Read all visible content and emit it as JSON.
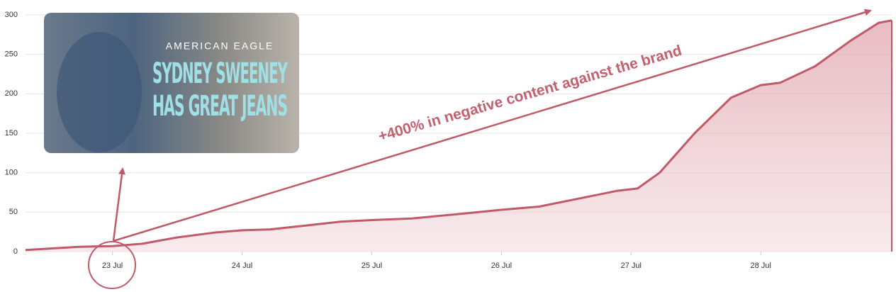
{
  "chart_data": {
    "type": "area",
    "x": [
      22.33,
      22.74,
      23.0,
      23.23,
      23.5,
      23.78,
      24.0,
      24.21,
      24.49,
      24.76,
      25.0,
      25.31,
      25.63,
      26.0,
      26.29,
      26.62,
      26.89,
      27.05,
      27.22,
      27.49,
      27.77,
      28.0,
      28.15,
      28.42,
      28.69,
      28.91,
      29.01
    ],
    "values": [
      2,
      6,
      7,
      10,
      18,
      24,
      27,
      28,
      33,
      38,
      40,
      42,
      47,
      53,
      57,
      68,
      77,
      80,
      100,
      150,
      195,
      211,
      214,
      235,
      267,
      290,
      293
    ],
    "color": "#c05a68",
    "xlim": [
      22.33,
      29.01
    ],
    "xticks": [
      {
        "value": 23,
        "label": "23 Jul"
      },
      {
        "value": 24,
        "label": "24 Jul"
      },
      {
        "value": 25,
        "label": "25 Jul"
      },
      {
        "value": 26,
        "label": "26 Jul"
      },
      {
        "value": 27,
        "label": "27 Jul"
      },
      {
        "value": 28,
        "label": "28 Jul"
      }
    ],
    "ylim": [
      0,
      300
    ],
    "yticks": [
      0,
      50,
      100,
      150,
      200,
      250,
      300
    ],
    "grid": true,
    "annotation": "+400% in negative content against the brand",
    "image_texts": [
      "AMERICAN EAGLE",
      "SYDNEY SWEENEY",
      "HAS GREAT JEANS"
    ]
  }
}
